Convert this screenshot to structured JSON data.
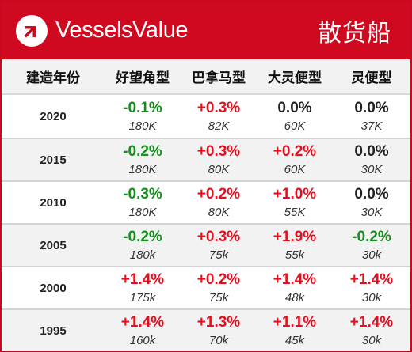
{
  "colors": {
    "brand": "#cf0a20",
    "positive": "#e4101f",
    "negative": "#168e1d",
    "neutral": "#222222"
  },
  "header": {
    "brand_name": "VesselsValue",
    "brand_icon": "vesselsvalue-logo-icon",
    "title": "散货船"
  },
  "columns": [
    "建造年份",
    "好望角型",
    "巴拿马型",
    "大灵便型",
    "灵便型"
  ],
  "rows": [
    {
      "year": "2020",
      "cells": [
        {
          "pct": "-0.1%",
          "val": "180K",
          "dir": "neg"
        },
        {
          "pct": "+0.3%",
          "val": "82K",
          "dir": "pos"
        },
        {
          "pct": "0.0%",
          "val": "60K",
          "dir": "zero"
        },
        {
          "pct": "0.0%",
          "val": "37K",
          "dir": "zero"
        }
      ]
    },
    {
      "year": "2015",
      "cells": [
        {
          "pct": "-0.2%",
          "val": "180K",
          "dir": "neg"
        },
        {
          "pct": "+0.3%",
          "val": "80K",
          "dir": "pos"
        },
        {
          "pct": "+0.2%",
          "val": "60K",
          "dir": "pos"
        },
        {
          "pct": "0.0%",
          "val": "30K",
          "dir": "zero"
        }
      ]
    },
    {
      "year": "2010",
      "cells": [
        {
          "pct": "-0.3%",
          "val": "180K",
          "dir": "neg"
        },
        {
          "pct": "+0.2%",
          "val": "80K",
          "dir": "pos"
        },
        {
          "pct": "+1.0%",
          "val": "55K",
          "dir": "pos"
        },
        {
          "pct": "0.0%",
          "val": "30K",
          "dir": "zero"
        }
      ]
    },
    {
      "year": "2005",
      "cells": [
        {
          "pct": "-0.2%",
          "val": "180k",
          "dir": "neg"
        },
        {
          "pct": "+0.3%",
          "val": "75k",
          "dir": "pos"
        },
        {
          "pct": "+1.9%",
          "val": "55k",
          "dir": "pos"
        },
        {
          "pct": "-0.2%",
          "val": "30k",
          "dir": "neg"
        }
      ]
    },
    {
      "year": "2000",
      "cells": [
        {
          "pct": "+1.4%",
          "val": "175k",
          "dir": "pos"
        },
        {
          "pct": "+0.2%",
          "val": "75k",
          "dir": "pos"
        },
        {
          "pct": "+1.4%",
          "val": "48k",
          "dir": "pos"
        },
        {
          "pct": "+1.4%",
          "val": "30k",
          "dir": "pos"
        }
      ]
    },
    {
      "year": "1995",
      "cells": [
        {
          "pct": "+1.4%",
          "val": "160k",
          "dir": "pos"
        },
        {
          "pct": "+1.3%",
          "val": "70k",
          "dir": "pos"
        },
        {
          "pct": "+1.1%",
          "val": "45k",
          "dir": "pos"
        },
        {
          "pct": "+1.4%",
          "val": "30k",
          "dir": "pos"
        }
      ]
    }
  ]
}
